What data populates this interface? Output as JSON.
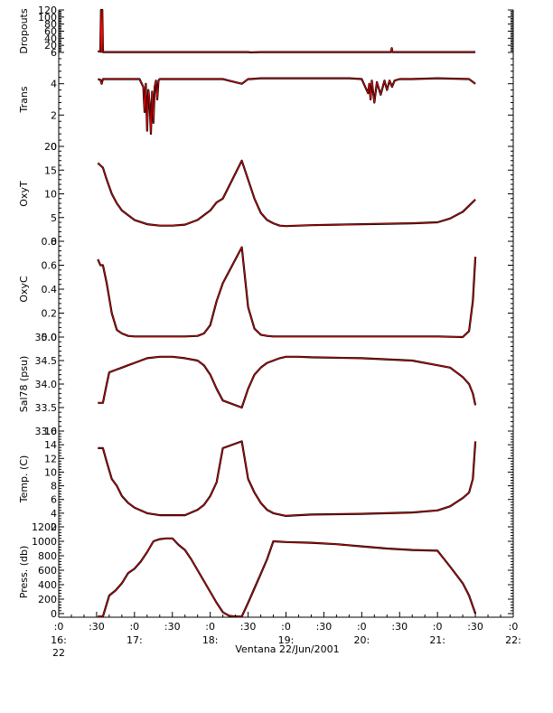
{
  "figure": {
    "caption": "Ventana 22/Jun/2001",
    "x_ticks": [
      {
        "t": 0,
        "line1": ":0",
        "line2": "16:",
        "line3": "22"
      },
      {
        "t": 30,
        "line1": ":30",
        "line2": "",
        "line3": ""
      },
      {
        "t": 60,
        "line1": ":0",
        "line2": "17:",
        "line3": ""
      },
      {
        "t": 90,
        "line1": ":30",
        "line2": "",
        "line3": ""
      },
      {
        "t": 120,
        "line1": ":0",
        "line2": "18:",
        "line3": ""
      },
      {
        "t": 150,
        "line1": ":30",
        "line2": "",
        "line3": ""
      },
      {
        "t": 180,
        "line1": ":0",
        "line2": "19:",
        "line3": ""
      },
      {
        "t": 210,
        "line1": ":30",
        "line2": "",
        "line3": ""
      },
      {
        "t": 240,
        "line1": ":0",
        "line2": "20:",
        "line3": ""
      },
      {
        "t": 270,
        "line1": ":30",
        "line2": "",
        "line3": ""
      },
      {
        "t": 300,
        "line1": ":0",
        "line2": "21:",
        "line3": ""
      },
      {
        "t": 330,
        "line1": ":30",
        "line2": "",
        "line3": ""
      },
      {
        "t": 360,
        "line1": ":0",
        "line2": "22:",
        "line3": ""
      }
    ],
    "x_unit_note": "",
    "colors": {
      "raw": "#ff0000",
      "smoothed": "#000000",
      "axis": "#000000"
    }
  },
  "chart_data": [
    {
      "type": "line",
      "ylabel": "Dropouts",
      "ylim": [
        0,
        120
      ],
      "yticks": [
        0,
        20,
        40,
        60,
        80,
        100,
        120
      ],
      "ytick_labels": [
        "",
        "20",
        "40",
        "60",
        "80",
        "100",
        "120"
      ],
      "series": [
        {
          "x": [
            31,
            32,
            33,
            33.5,
            34,
            34.5,
            35,
            36,
            60,
            100,
            130,
            150,
            152,
            160,
            180,
            200,
            240,
            263,
            263.8,
            264.2,
            265,
            300,
            325,
            330
          ],
          "y": [
            2,
            3,
            2,
            120,
            2,
            120,
            1,
            1,
            1,
            1,
            1,
            1,
            0,
            1,
            1,
            1,
            1,
            1,
            12,
            1,
            1,
            1,
            1,
            1
          ]
        }
      ]
    },
    {
      "type": "line",
      "ylabel": "Trans",
      "ylim": [
        0,
        6
      ],
      "yticks": [
        0,
        2,
        4,
        6
      ],
      "ytick_labels": [
        "0",
        "2",
        "4",
        "6"
      ],
      "series": [
        {
          "x": [
            31,
            33,
            34,
            35,
            38,
            55,
            64,
            67,
            68,
            69,
            70,
            71,
            72,
            73,
            74,
            75,
            76,
            77,
            78,
            79,
            80,
            85,
            110,
            130,
            145,
            150,
            152,
            160,
            230,
            240,
            245,
            246,
            247,
            248,
            250,
            252,
            255,
            258,
            260,
            262,
            264,
            266,
            270,
            280,
            300,
            325,
            330
          ],
          "y": [
            4.3,
            4.25,
            4.0,
            4.3,
            4.3,
            4.3,
            4.3,
            3.8,
            2.2,
            4.0,
            1.0,
            3.6,
            2.8,
            0.8,
            3.5,
            1.5,
            3.8,
            4.2,
            3.0,
            4.2,
            4.3,
            4.3,
            4.3,
            4.3,
            4.0,
            4.3,
            4.3,
            4.35,
            4.35,
            4.3,
            3.4,
            4.0,
            3.0,
            4.2,
            2.8,
            4.1,
            3.3,
            4.2,
            3.6,
            4.2,
            3.8,
            4.2,
            4.3,
            4.3,
            4.35,
            4.3,
            4.0
          ]
        }
      ]
    },
    {
      "type": "line",
      "ylabel": "OxyT",
      "ylim": [
        0,
        20
      ],
      "yticks": [
        0,
        5,
        10,
        15,
        20
      ],
      "ytick_labels": [
        "0",
        "5",
        "10",
        "15",
        "20"
      ],
      "series": [
        {
          "x": [
            31,
            33,
            35,
            38,
            42,
            46,
            50,
            55,
            60,
            70,
            80,
            90,
            100,
            110,
            120,
            125,
            130,
            145,
            150,
            155,
            160,
            165,
            170,
            175,
            180,
            190,
            200,
            220,
            240,
            260,
            280,
            300,
            310,
            320,
            330
          ],
          "y": [
            16.5,
            16,
            15.5,
            13,
            10,
            8,
            6.5,
            5.5,
            4.5,
            3.6,
            3.3,
            3.3,
            3.5,
            4.5,
            6.5,
            8.2,
            9,
            17,
            13,
            9,
            6,
            4.5,
            3.8,
            3.3,
            3.2,
            3.3,
            3.4,
            3.5,
            3.6,
            3.7,
            3.8,
            4,
            4.8,
            6.2,
            8.8
          ]
        }
      ]
    },
    {
      "type": "line",
      "ylabel": "OxyC",
      "ylim": [
        0.0,
        0.8
      ],
      "yticks": [
        0.0,
        0.2,
        0.4,
        0.6,
        0.8
      ],
      "ytick_labels": [
        "0.0",
        "0.2",
        "0.4",
        "0.6",
        "0.8"
      ],
      "series": [
        {
          "x": [
            31,
            33,
            35,
            38,
            42,
            46,
            50,
            55,
            60,
            70,
            80,
            90,
            100,
            110,
            115,
            120,
            125,
            130,
            145,
            150,
            155,
            160,
            165,
            170,
            180,
            200,
            240,
            280,
            300,
            320,
            325,
            328,
            330
          ],
          "y": [
            0.65,
            0.6,
            0.6,
            0.45,
            0.2,
            0.06,
            0.03,
            0.01,
            0.005,
            0.005,
            0.005,
            0.005,
            0.005,
            0.01,
            0.03,
            0.1,
            0.3,
            0.45,
            0.75,
            0.25,
            0.07,
            0.02,
            0.01,
            0.005,
            0.005,
            0.005,
            0.005,
            0.005,
            0.005,
            0.0,
            0.05,
            0.3,
            0.67
          ]
        }
      ]
    },
    {
      "type": "line",
      "ylabel": "Sal78 (psu)",
      "ylim": [
        33.0,
        35.0
      ],
      "yticks": [
        33.0,
        33.5,
        34.0,
        34.5,
        35.0
      ],
      "ytick_labels": [
        "33.0",
        "33.5",
        "34.0",
        "34.5",
        "35.0"
      ],
      "series": [
        {
          "x": [
            31,
            33,
            35,
            38,
            40,
            45,
            50,
            55,
            60,
            70,
            80,
            90,
            100,
            110,
            115,
            120,
            125,
            130,
            145,
            150,
            155,
            160,
            165,
            170,
            175,
            180,
            190,
            200,
            240,
            280,
            300,
            310,
            315,
            320,
            325,
            328,
            330
          ],
          "y": [
            33.6,
            33.6,
            33.6,
            34.0,
            34.25,
            34.3,
            34.35,
            34.4,
            34.45,
            34.55,
            34.58,
            34.58,
            34.55,
            34.5,
            34.4,
            34.2,
            33.9,
            33.65,
            33.5,
            33.9,
            34.2,
            34.35,
            34.45,
            34.5,
            34.55,
            34.58,
            34.58,
            34.57,
            34.55,
            34.5,
            34.4,
            34.35,
            34.25,
            34.15,
            34.0,
            33.8,
            33.55
          ]
        }
      ]
    },
    {
      "type": "line",
      "ylabel": "Temp. (C)",
      "ylim": [
        2,
        16
      ],
      "yticks": [
        2,
        4,
        6,
        8,
        10,
        12,
        14,
        16
      ],
      "ytick_labels": [
        "2",
        "4",
        "6",
        "8",
        "10",
        "12",
        "14",
        "16"
      ],
      "series": [
        {
          "x": [
            31,
            33,
            35,
            38,
            42,
            46,
            50,
            55,
            60,
            70,
            80,
            90,
            100,
            110,
            115,
            120,
            125,
            130,
            145,
            150,
            155,
            160,
            165,
            170,
            180,
            200,
            240,
            280,
            300,
            310,
            320,
            325,
            328,
            330
          ],
          "y": [
            13.5,
            13.5,
            13.5,
            11.5,
            9,
            8,
            6.5,
            5.5,
            4.8,
            4,
            3.7,
            3.7,
            3.7,
            4.5,
            5.2,
            6.5,
            8.5,
            13.5,
            14.5,
            9,
            7,
            5.5,
            4.5,
            4,
            3.6,
            3.8,
            3.9,
            4.1,
            4.4,
            5,
            6.2,
            7,
            9,
            14.5
          ]
        }
      ]
    },
    {
      "type": "line",
      "ylabel": "Press. (db)",
      "ylim": [
        -50,
        1200
      ],
      "yticks": [
        0,
        200,
        400,
        600,
        800,
        1000,
        1200
      ],
      "ytick_labels": [
        "0",
        "200",
        "400",
        "600",
        "800",
        "1000",
        "1200"
      ],
      "series": [
        {
          "x": [
            31,
            35,
            40,
            45,
            50,
            55,
            60,
            65,
            70,
            75,
            80,
            85,
            90,
            95,
            100,
            105,
            110,
            115,
            120,
            125,
            130,
            135,
            140,
            145,
            150,
            155,
            160,
            165,
            170,
            180,
            200,
            220,
            240,
            260,
            280,
            300,
            310,
            320,
            325,
            330
          ],
          "y": [
            -40,
            -40,
            250,
            320,
            420,
            560,
            620,
            720,
            850,
            1000,
            1030,
            1040,
            1040,
            950,
            880,
            750,
            600,
            450,
            300,
            150,
            20,
            -30,
            -40,
            -40,
            150,
            350,
            550,
            750,
            1000,
            990,
            980,
            960,
            930,
            900,
            880,
            870,
            650,
            420,
            250,
            0
          ]
        }
      ]
    }
  ]
}
